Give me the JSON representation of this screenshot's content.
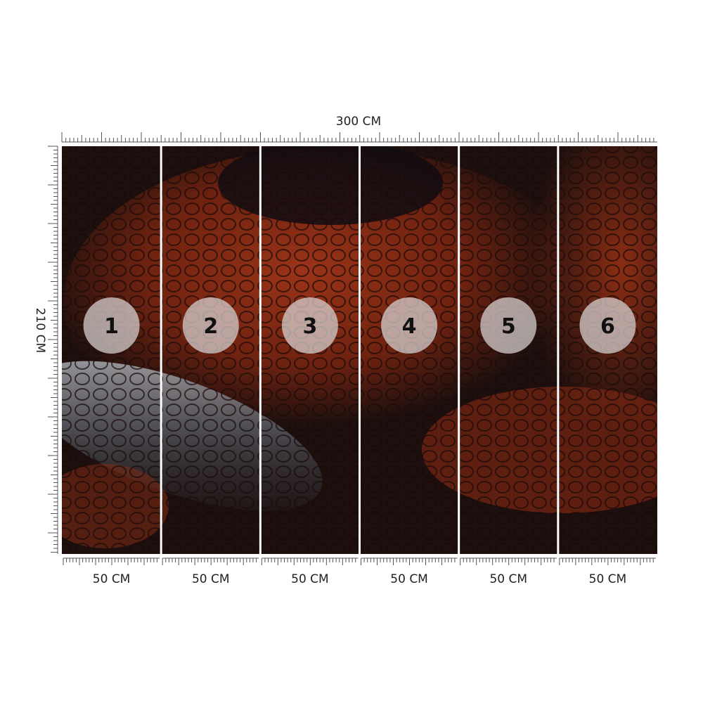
{
  "width_label": "300 CM",
  "height_label": "210 CM",
  "panels": [
    {
      "number": "1",
      "width_label": "50 CM"
    },
    {
      "number": "2",
      "width_label": "50 CM"
    },
    {
      "number": "3",
      "width_label": "50 CM"
    },
    {
      "number": "4",
      "width_label": "50 CM"
    },
    {
      "number": "5",
      "width_label": "50 CM"
    },
    {
      "number": "6",
      "width_label": "50 CM"
    }
  ]
}
